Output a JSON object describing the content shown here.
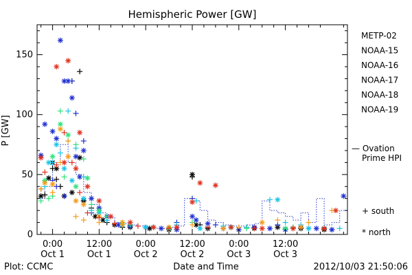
{
  "chart_data": {
    "type": "scatter",
    "title": "Hemispheric Power [GW]",
    "xlabel": "Date and Time",
    "ylabel": "P [GW]",
    "ylim": [
      0,
      175
    ],
    "xlim": [
      -4,
      76
    ],
    "x_unit": "hours since 2012/10/01 00:00",
    "yticks": [
      0,
      50,
      100,
      150
    ],
    "xticks": [
      {
        "x": 0,
        "time": "0:00",
        "date": "Oct 1"
      },
      {
        "x": 12,
        "time": "12:00",
        "date": "Oct 1"
      },
      {
        "x": 24,
        "time": "0:00",
        "date": "Oct 2"
      },
      {
        "x": 36,
        "time": "12:00",
        "date": "Oct 2"
      },
      {
        "x": 48,
        "time": "0:00",
        "date": "Oct 3"
      },
      {
        "x": 60,
        "time": "12:00",
        "date": "Oct 3"
      }
    ],
    "legend": {
      "satellites": [
        {
          "name": "METP-02",
          "color": "#000000"
        },
        {
          "name": "NOAA-15",
          "color": "#1f2fd0"
        },
        {
          "name": "NOAA-16",
          "color": "#19c5e6"
        },
        {
          "name": "NOAA-17",
          "color": "#2ee27c"
        },
        {
          "name": "NOAA-18",
          "color": "#f59b1a"
        },
        {
          "name": "NOAA-19",
          "color": "#e0301e"
        }
      ],
      "ovation_line1": "— Ovation",
      "ovation_line2": "Prime HPI",
      "ovation_color": "#1f2fd0",
      "south_label": "+ south",
      "north_label": "* north"
    },
    "footer_left": "Plot: CCMC",
    "footer_right": "2012/10/03 21:50:06",
    "series": [
      {
        "name": "METP-02",
        "marker": "+",
        "points": [
          [
            -2,
            33
          ],
          [
            0,
            55
          ],
          [
            1,
            46
          ],
          [
            2,
            40
          ],
          [
            3,
            32
          ],
          [
            5,
            128
          ],
          [
            7,
            136
          ],
          [
            8,
            28
          ],
          [
            10,
            22
          ],
          [
            14,
            10
          ],
          [
            18,
            6
          ],
          [
            36,
            48
          ],
          [
            38,
            8
          ],
          [
            50,
            6
          ],
          [
            62,
            6
          ]
        ]
      },
      {
        "name": "METP-02",
        "marker": "*",
        "points": [
          [
            -3,
            32
          ],
          [
            -1,
            47
          ],
          [
            0,
            60
          ],
          [
            1,
            55
          ],
          [
            3,
            32
          ],
          [
            5,
            35
          ],
          [
            7,
            64
          ],
          [
            8,
            28
          ],
          [
            11,
            15
          ],
          [
            13,
            12
          ],
          [
            16,
            8
          ],
          [
            20,
            6
          ],
          [
            25,
            5
          ],
          [
            30,
            4
          ],
          [
            36,
            50
          ],
          [
            37,
            8
          ],
          [
            40,
            5
          ],
          [
            46,
            6
          ],
          [
            52,
            5
          ],
          [
            58,
            6
          ],
          [
            64,
            5
          ],
          [
            70,
            4
          ]
        ]
      },
      {
        "name": "NOAA-15",
        "marker": "+",
        "points": [
          [
            -3,
            38
          ],
          [
            0,
            45
          ],
          [
            1,
            40
          ],
          [
            3,
            32
          ],
          [
            5,
            128
          ],
          [
            6,
            101
          ],
          [
            8,
            78
          ],
          [
            10,
            18
          ],
          [
            14,
            12
          ],
          [
            20,
            8
          ],
          [
            26,
            6
          ],
          [
            32,
            10
          ],
          [
            36,
            30
          ],
          [
            42,
            8
          ],
          [
            52,
            6
          ],
          [
            58,
            8
          ],
          [
            66,
            5
          ],
          [
            72,
            4
          ]
        ]
      },
      {
        "name": "NOAA-15",
        "marker": "*",
        "points": [
          [
            -3,
            66
          ],
          [
            -2,
            92
          ],
          [
            0,
            86
          ],
          [
            1,
            80
          ],
          [
            2,
            162
          ],
          [
            3,
            128
          ],
          [
            4,
            128
          ],
          [
            5,
            114
          ],
          [
            6,
            65
          ],
          [
            7,
            48
          ],
          [
            8,
            70
          ],
          [
            10,
            30
          ],
          [
            12,
            22
          ],
          [
            14,
            15
          ],
          [
            17,
            8
          ],
          [
            20,
            7
          ],
          [
            24,
            6
          ],
          [
            28,
            5
          ],
          [
            32,
            4
          ],
          [
            36,
            15
          ],
          [
            37,
            12
          ],
          [
            40,
            9
          ],
          [
            44,
            5
          ],
          [
            48,
            4
          ],
          [
            52,
            6
          ],
          [
            56,
            5
          ],
          [
            60,
            4
          ],
          [
            64,
            6
          ],
          [
            68,
            5
          ],
          [
            72,
            4
          ],
          [
            75,
            32
          ]
        ]
      },
      {
        "name": "NOAA-16",
        "marker": "+",
        "points": [
          [
            -2,
            40
          ],
          [
            0,
            60
          ],
          [
            2,
            68
          ],
          [
            4,
            103
          ],
          [
            6,
            72
          ],
          [
            8,
            48
          ],
          [
            10,
            20
          ],
          [
            14,
            12
          ],
          [
            20,
            8
          ],
          [
            26,
            6
          ],
          [
            32,
            8
          ],
          [
            37,
            28
          ],
          [
            44,
            7
          ],
          [
            50,
            6
          ],
          [
            56,
            29
          ],
          [
            60,
            10
          ],
          [
            64,
            8
          ],
          [
            70,
            6
          ],
          [
            74,
            5
          ]
        ]
      },
      {
        "name": "NOAA-16",
        "marker": "*",
        "points": [
          [
            -1,
            60
          ],
          [
            1,
            75
          ],
          [
            3,
            55
          ],
          [
            5,
            45
          ],
          [
            8,
            30
          ],
          [
            12,
            18
          ],
          [
            18,
            8
          ],
          [
            24,
            6
          ],
          [
            30,
            5
          ],
          [
            38,
            5
          ],
          [
            46,
            6
          ],
          [
            58,
            29
          ],
          [
            66,
            5
          ]
        ]
      },
      {
        "name": "NOAA-17",
        "marker": "+",
        "points": [
          [
            -3,
            28
          ],
          [
            -1,
            30
          ],
          [
            0,
            32
          ],
          [
            2,
            103
          ],
          [
            3,
            48
          ],
          [
            4,
            78
          ],
          [
            6,
            75
          ],
          [
            8,
            63
          ],
          [
            10,
            25
          ],
          [
            14,
            15
          ],
          [
            20,
            8
          ],
          [
            26,
            6
          ],
          [
            36,
            10
          ],
          [
            50,
            5
          ],
          [
            62,
            6
          ]
        ]
      },
      {
        "name": "NOAA-17",
        "marker": "*",
        "points": [
          [
            -2,
            45
          ],
          [
            0,
            65
          ],
          [
            2,
            92
          ],
          [
            4,
            83
          ],
          [
            6,
            40
          ],
          [
            9,
            47
          ],
          [
            12,
            20
          ],
          [
            18,
            10
          ],
          [
            30,
            5
          ],
          [
            46,
            6
          ],
          [
            60,
            5
          ]
        ]
      },
      {
        "name": "NOAA-18",
        "marker": "+",
        "points": [
          [
            -3,
            38
          ],
          [
            0,
            35
          ],
          [
            2,
            60
          ],
          [
            4,
            78
          ],
          [
            6,
            15
          ],
          [
            8,
            12
          ],
          [
            12,
            10
          ],
          [
            18,
            8
          ],
          [
            26,
            6
          ],
          [
            36,
            8
          ],
          [
            48,
            6
          ],
          [
            58,
            12
          ],
          [
            66,
            10
          ],
          [
            72,
            20
          ]
        ]
      },
      {
        "name": "NOAA-18",
        "marker": "*",
        "points": [
          [
            -2,
            43
          ],
          [
            0,
            42
          ],
          [
            2,
            88
          ],
          [
            4,
            65
          ],
          [
            6,
            28
          ],
          [
            8,
            25
          ],
          [
            12,
            15
          ],
          [
            18,
            10
          ],
          [
            30,
            6
          ],
          [
            44,
            5
          ],
          [
            54,
            10
          ],
          [
            64,
            6
          ]
        ]
      },
      {
        "name": "NOAA-19",
        "marker": "+",
        "points": [
          [
            -2,
            52
          ],
          [
            1,
            58
          ],
          [
            3,
            85
          ],
          [
            5,
            60
          ],
          [
            7,
            35
          ],
          [
            9,
            18
          ],
          [
            12,
            14
          ],
          [
            16,
            9
          ],
          [
            22,
            7
          ],
          [
            30,
            5
          ],
          [
            40,
            6
          ],
          [
            52,
            5
          ],
          [
            62,
            5
          ],
          [
            70,
            5
          ]
        ]
      },
      {
        "name": "NOAA-19",
        "marker": "*",
        "points": [
          [
            -3,
            64
          ],
          [
            1,
            140
          ],
          [
            3,
            60
          ],
          [
            4,
            145
          ],
          [
            6,
            55
          ],
          [
            7,
            85
          ],
          [
            9,
            40
          ],
          [
            12,
            28
          ],
          [
            15,
            15
          ],
          [
            20,
            10
          ],
          [
            26,
            6
          ],
          [
            32,
            6
          ],
          [
            36,
            27
          ],
          [
            38,
            43
          ],
          [
            42,
            41
          ],
          [
            46,
            6
          ],
          [
            54,
            5
          ],
          [
            62,
            5
          ],
          [
            70,
            5
          ],
          [
            73,
            20
          ]
        ]
      }
    ],
    "ovation_hpi": {
      "name": "Ovation Prime HPI",
      "x": [
        -4,
        -2,
        0,
        2,
        4,
        6,
        8,
        10,
        12,
        14,
        16,
        18,
        20,
        22,
        24,
        26,
        28,
        30,
        32,
        34,
        36,
        37,
        38,
        40,
        42,
        44,
        46,
        48,
        50,
        52,
        54,
        56,
        58,
        60,
        62,
        64,
        66,
        68,
        70,
        72,
        74,
        76
      ],
      "y": [
        30,
        40,
        60,
        75,
        60,
        50,
        35,
        25,
        18,
        14,
        10,
        9,
        8,
        7,
        6,
        5,
        5,
        6,
        7,
        30,
        30,
        28,
        20,
        12,
        10,
        8,
        7,
        7,
        8,
        9,
        28,
        20,
        18,
        15,
        12,
        18,
        10,
        30,
        8,
        10,
        20,
        20
      ]
    }
  }
}
